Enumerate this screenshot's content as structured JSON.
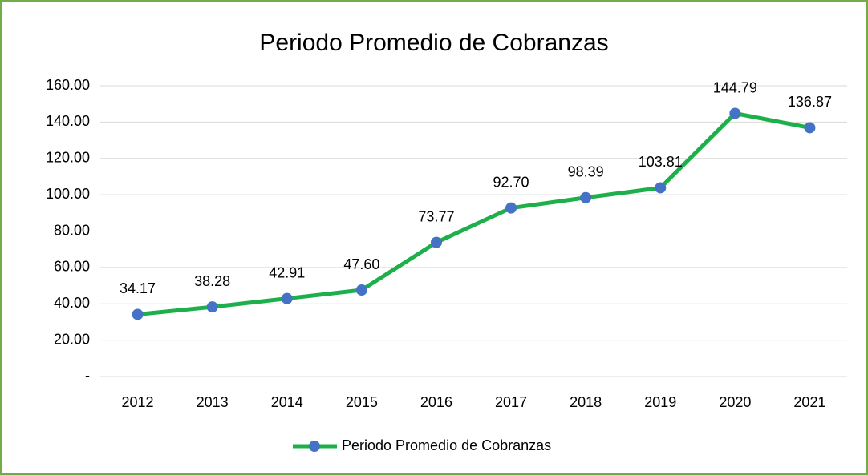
{
  "chart_data": {
    "type": "line",
    "title": "Periodo Promedio de Cobranzas",
    "categories": [
      "2012",
      "2013",
      "2014",
      "2015",
      "2016",
      "2017",
      "2018",
      "2019",
      "2020",
      "2021"
    ],
    "series": [
      {
        "name": "Periodo Promedio de Cobranzas",
        "color": "#1db04a",
        "marker_color": "#4472c4",
        "values": [
          34.17,
          38.28,
          42.91,
          47.6,
          73.77,
          92.7,
          98.39,
          103.81,
          144.79,
          136.87
        ],
        "value_labels": [
          "34.17",
          "38.28",
          "42.91",
          "47.60",
          "73.77",
          "92.70",
          "98.39",
          "103.81",
          "144.79",
          "136.87"
        ]
      }
    ],
    "ylim": [
      0,
      160
    ],
    "yticks": [
      {
        "value": 0,
        "label": "-"
      },
      {
        "value": 20,
        "label": "20.00"
      },
      {
        "value": 40,
        "label": "40.00"
      },
      {
        "value": 60,
        "label": "60.00"
      },
      {
        "value": 80,
        "label": "80.00"
      },
      {
        "value": 100,
        "label": "100.00"
      },
      {
        "value": 120,
        "label": "120.00"
      },
      {
        "value": 140,
        "label": "140.00"
      },
      {
        "value": 160,
        "label": "160.00"
      }
    ],
    "grid": true,
    "legend": "bottom"
  }
}
